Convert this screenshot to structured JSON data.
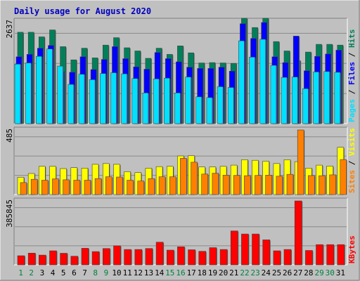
{
  "chart_data": [
    {
      "panel": "pages-files-hits",
      "type": "bar",
      "title": "Daily usage for August 2020",
      "ymax_label": "2637",
      "ylim": [
        0,
        2637
      ],
      "grid": true,
      "legend": [
        "Pages",
        "Files",
        "Hits"
      ],
      "legend_separator": " / ",
      "categories": [
        "1",
        "2",
        "3",
        "4",
        "5",
        "6",
        "7",
        "8",
        "9",
        "10",
        "11",
        "12",
        "13",
        "14",
        "15",
        "16",
        "17",
        "18",
        "19",
        "20",
        "21",
        "22",
        "23",
        "24",
        "25",
        "26",
        "27",
        "28",
        "29",
        "30",
        "31"
      ],
      "weekend_days": [
        "1",
        "2",
        "8",
        "9",
        "15",
        "16",
        "22",
        "23",
        "29",
        "30"
      ],
      "series": [
        {
          "name": "Hits",
          "color": "#00805a",
          "values": [
            2350,
            2350,
            2230,
            2410,
            1980,
            1640,
            1940,
            1690,
            2020,
            2210,
            1950,
            1870,
            1680,
            1940,
            1780,
            2000,
            1820,
            1560,
            1570,
            1560,
            1550,
            2710,
            2470,
            2710,
            2110,
            1870,
            1620,
            1840,
            2040,
            2040,
            2020
          ]
        },
        {
          "name": "Files",
          "color": "#0000ff",
          "values": [
            1720,
            1780,
            1940,
            2010,
            1340,
            1320,
            1720,
            1390,
            1650,
            1980,
            1670,
            1460,
            1400,
            1830,
            1670,
            1590,
            1450,
            1420,
            1420,
            1450,
            1350,
            2570,
            2190,
            2600,
            1720,
            1570,
            2250,
            1360,
            1730,
            1790,
            1890
          ]
        },
        {
          "name": "Pages",
          "color": "#00e0ff",
          "values": [
            1530,
            1560,
            1730,
            1920,
            1480,
            1010,
            1270,
            1130,
            1290,
            1310,
            1280,
            1160,
            790,
            1150,
            1170,
            790,
            1200,
            690,
            670,
            950,
            930,
            2130,
            1710,
            2170,
            1500,
            1190,
            1200,
            900,
            1330,
            1340,
            1320
          ]
        }
      ]
    },
    {
      "panel": "visits-sites",
      "type": "bar",
      "ymax_label": "485",
      "ylim": [
        0,
        485
      ],
      "grid": true,
      "legend": [
        "Visits",
        "Sites"
      ],
      "legend_separator": " / ",
      "categories": [
        "1",
        "2",
        "3",
        "4",
        "5",
        "6",
        "7",
        "8",
        "9",
        "10",
        "11",
        "12",
        "13",
        "14",
        "15",
        "16",
        "17",
        "18",
        "19",
        "20",
        "21",
        "22",
        "23",
        "24",
        "25",
        "26",
        "27",
        "28",
        "29",
        "30",
        "31"
      ],
      "series": [
        {
          "name": "Visits",
          "color": "#ffff00",
          "values": [
            130,
            158,
            212,
            212,
            195,
            202,
            199,
            227,
            233,
            227,
            172,
            165,
            198,
            210,
            212,
            290,
            292,
            207,
            207,
            212,
            221,
            262,
            257,
            251,
            233,
            262,
            247,
            199,
            221,
            214,
            355
          ]
        },
        {
          "name": "Sites",
          "color": "#ff8000",
          "values": [
            90,
            115,
            108,
            118,
            111,
            108,
            108,
            120,
            134,
            132,
            108,
            102,
            120,
            134,
            134,
            272,
            243,
            154,
            160,
            146,
            144,
            142,
            144,
            146,
            138,
            152,
            485,
            143,
            142,
            148,
            263
          ]
        }
      ]
    },
    {
      "panel": "kbytes",
      "type": "bar",
      "ymax_label": "385845",
      "ylim": [
        0,
        385845
      ],
      "grid": true,
      "legend": [
        "KBytes"
      ],
      "categories": [
        "1",
        "2",
        "3",
        "4",
        "5",
        "6",
        "7",
        "8",
        "9",
        "10",
        "11",
        "12",
        "13",
        "14",
        "15",
        "16",
        "17",
        "18",
        "19",
        "20",
        "21",
        "22",
        "23",
        "24",
        "25",
        "26",
        "27",
        "28",
        "29",
        "30",
        "31"
      ],
      "series": [
        {
          "name": "KBytes",
          "color": "#ff0000",
          "values": [
            55000,
            71000,
            59000,
            85000,
            70000,
            52000,
            100000,
            80000,
            99000,
            115000,
            93000,
            93000,
            99000,
            137000,
            89000,
            109000,
            91000,
            82000,
            104000,
            93000,
            205000,
            186000,
            186000,
            151000,
            85000,
            93000,
            385845,
            87000,
            122000,
            122000,
            122000
          ]
        }
      ]
    }
  ]
}
